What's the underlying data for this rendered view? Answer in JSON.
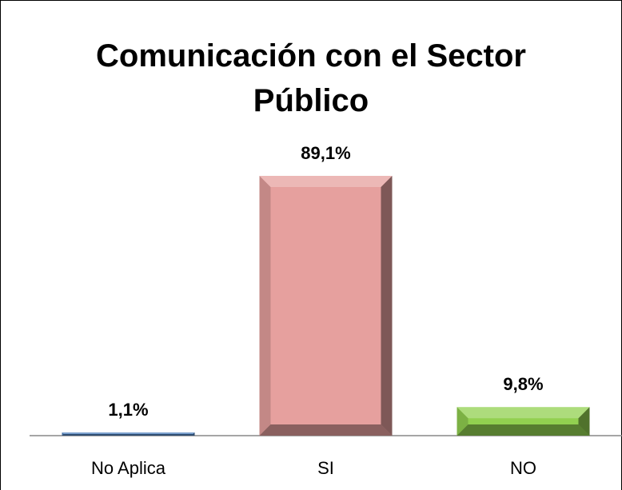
{
  "chart_data": {
    "type": "bar",
    "title": "Comunicación con el Sector Público",
    "categories": [
      "No Aplica",
      "SI",
      "NO"
    ],
    "values": [
      1.1,
      89.1,
      9.8
    ],
    "value_labels": [
      "1,1%",
      "89,1%",
      "9,8%"
    ],
    "colors": [
      "#4f81bd",
      "#e6a09e",
      "#92d050"
    ]
  }
}
